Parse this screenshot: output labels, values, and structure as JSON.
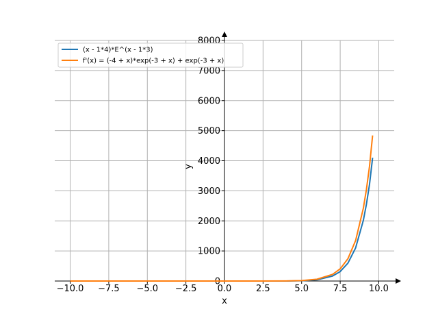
{
  "chart_data": {
    "type": "line",
    "title": "",
    "xlabel": "x",
    "ylabel": "y",
    "xlim": [
      -11.0,
      11.0
    ],
    "ylim": [
      0,
      8000
    ],
    "grid": true,
    "legend_position": "top-left",
    "x_ticks": [
      -10.0,
      -7.5,
      -5.0,
      -2.5,
      0.0,
      2.5,
      5.0,
      7.5,
      10.0
    ],
    "x_tick_labels": [
      "−10.0",
      "−7.5",
      "−5.0",
      "−2.5",
      "0.0",
      "2.5",
      "5.0",
      "7.5",
      "10.0"
    ],
    "y_ticks": [
      0,
      1000,
      2000,
      3000,
      4000,
      5000,
      6000,
      7000,
      8000
    ],
    "y_tick_labels": [
      "0",
      "1000",
      "2000",
      "3000",
      "4000",
      "5000",
      "6000",
      "7000",
      "8000"
    ],
    "series": [
      {
        "name": "(x - 1*4)*E^(x - 1*3)",
        "color": "#1f77b4",
        "x": [
          -10,
          -8,
          -6,
          -4,
          -2,
          0,
          2,
          4,
          5,
          6,
          7,
          7.5,
          8,
          8.5,
          9,
          9.2,
          9.4,
          9.6
        ],
        "y": [
          0,
          0,
          0,
          0,
          0,
          -0.2,
          -0.7,
          0,
          7.4,
          40,
          164,
          314,
          594,
          1102,
          2017,
          2554,
          3213,
          4100
        ]
      },
      {
        "name": "f'(x) = (-4 + x)*exp(-3 + x) + exp(-3 + x)",
        "color": "#ff7f0e",
        "x": [
          -10,
          -8,
          -6,
          -4,
          -2,
          0,
          2,
          4,
          5,
          6,
          7,
          7.5,
          8,
          8.5,
          9,
          9.2,
          9.4,
          9.6
        ],
        "y": [
          0,
          0,
          0,
          0,
          0,
          -0.1,
          -0.7,
          2.7,
          14.8,
          60,
          219,
          405,
          742,
          1347,
          2420,
          3047,
          3815,
          4840
        ]
      }
    ]
  }
}
